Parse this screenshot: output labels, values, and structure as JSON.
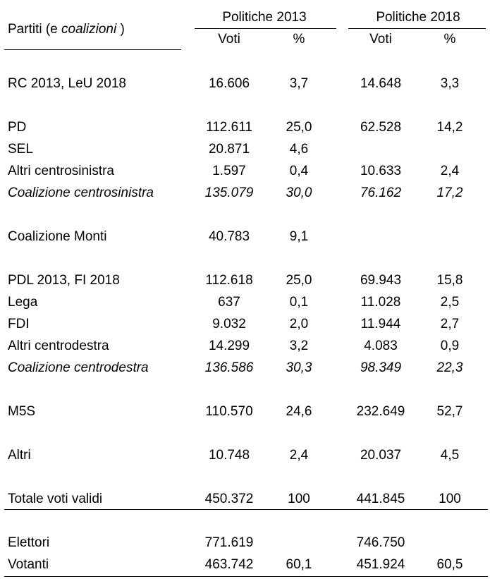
{
  "header": {
    "parties_label": "Partiti (e ",
    "parties_label_italic": "coalizioni",
    "parties_label_end": " )",
    "election_2013": "Politiche 2013",
    "election_2018": "Politiche 2018",
    "votes_label": "Voti",
    "percent_label": "%"
  },
  "rows": [
    {
      "label": "RC 2013, LeU 2018",
      "v2013": "16.606",
      "p2013": "3,7",
      "v2018": "14.648",
      "p2018": "3,3"
    },
    {
      "label": "PD",
      "v2013": "112.611",
      "p2013": "25,0",
      "v2018": "62.528",
      "p2018": "14,2"
    },
    {
      "label": "SEL",
      "v2013": "20.871",
      "p2013": "4,6",
      "v2018": "",
      "p2018": ""
    },
    {
      "label": "Altri centrosinistra",
      "v2013": "1.597",
      "p2013": "0,4",
      "v2018": "10.633",
      "p2018": "2,4"
    },
    {
      "label": "Coalizione centrosinistra",
      "v2013": "135.079",
      "p2013": "30,0",
      "v2018": "76.162",
      "p2018": "17,2"
    },
    {
      "label": "Coalizione Monti",
      "v2013": "40.783",
      "p2013": "9,1",
      "v2018": "",
      "p2018": ""
    },
    {
      "label": "PDL 2013, FI 2018",
      "v2013": "112.618",
      "p2013": "25,0",
      "v2018": "69.943",
      "p2018": "15,8"
    },
    {
      "label": "Lega",
      "v2013": "637",
      "p2013": "0,1",
      "v2018": "11.028",
      "p2018": "2,5"
    },
    {
      "label": "FDI",
      "v2013": "9.032",
      "p2013": "2,0",
      "v2018": "11.944",
      "p2018": "2,7"
    },
    {
      "label": "Altri centrodestra",
      "v2013": "14.299",
      "p2013": "3,2",
      "v2018": "4.083",
      "p2018": "0,9"
    },
    {
      "label": "Coalizione centrodestra",
      "v2013": "136.586",
      "p2013": "30,3",
      "v2018": "98.349",
      "p2018": "22,3"
    },
    {
      "label": "M5S",
      "v2013": "110.570",
      "p2013": "24,6",
      "v2018": "232.649",
      "p2018": "52,7"
    },
    {
      "label": "Altri",
      "v2013": "10.748",
      "p2013": "2,4",
      "v2018": "20.037",
      "p2018": "4,5"
    },
    {
      "label": "Totale voti validi",
      "v2013": "450.372",
      "p2013": "100",
      "v2018": "441.845",
      "p2018": "100"
    },
    {
      "label": "Elettori",
      "v2013": "771.619",
      "p2013": "",
      "v2018": "746.750",
      "p2018": ""
    },
    {
      "label": "Votanti",
      "v2013": "463.742",
      "p2013": "60,1",
      "v2018": "451.924",
      "p2018": "60,5"
    }
  ]
}
